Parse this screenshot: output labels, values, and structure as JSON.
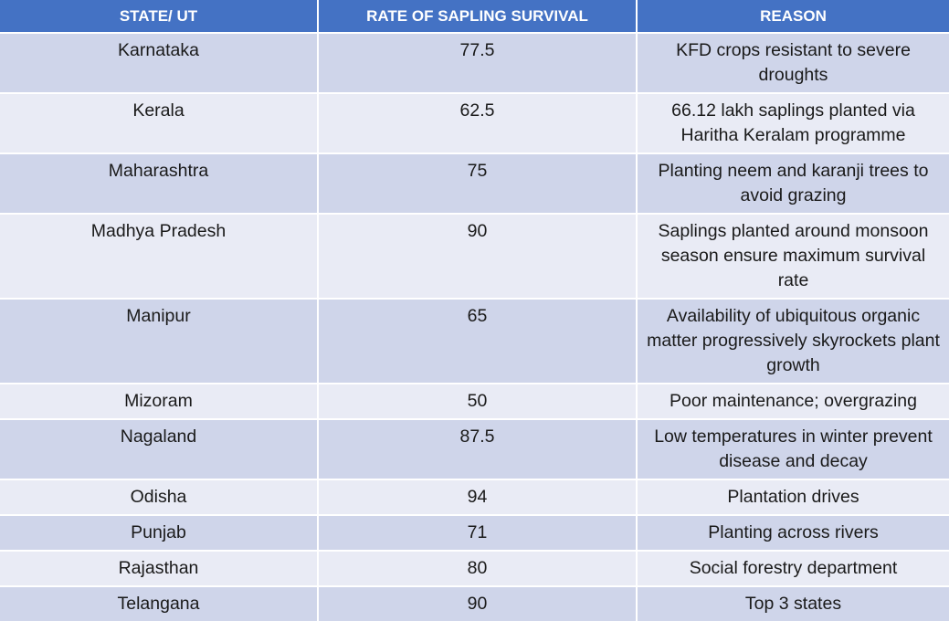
{
  "table": {
    "headers": [
      "STATE/ UT",
      "RATE OF SAPLING SURVIVAL",
      "REASON"
    ],
    "rows": [
      {
        "state": "Karnataka",
        "rate": "77.5",
        "reason": "KFD crops resistant to severe droughts"
      },
      {
        "state": "Kerala",
        "rate": "62.5",
        "reason": "66.12 lakh saplings planted via Haritha Keralam programme"
      },
      {
        "state": "Maharashtra",
        "rate": "75",
        "reason": "Planting neem and karanji trees to avoid grazing"
      },
      {
        "state": "Madhya Pradesh",
        "rate": "90",
        "reason": "Saplings planted around monsoon season ensure maximum survival rate"
      },
      {
        "state": "Manipur",
        "rate": "65",
        "reason": "Availability of ubiquitous organic matter progressively skyrockets plant growth"
      },
      {
        "state": "Mizoram",
        "rate": "50",
        "reason": "Poor maintenance; overgrazing"
      },
      {
        "state": "Nagaland",
        "rate": "87.5",
        "reason": "Low temperatures in winter prevent disease and decay"
      },
      {
        "state": "Odisha",
        "rate": "94",
        "reason": "Plantation drives"
      },
      {
        "state": "Punjab",
        "rate": "71",
        "reason": "Planting across rivers"
      },
      {
        "state": "Rajasthan",
        "rate": "80",
        "reason": "Social forestry department"
      },
      {
        "state": "Telangana",
        "rate": "90",
        "reason": "Top 3 states"
      }
    ]
  },
  "colors": {
    "header_bg": "#4472c4",
    "row_dark": "#cfd5ea",
    "row_light": "#e9ebf5"
  }
}
